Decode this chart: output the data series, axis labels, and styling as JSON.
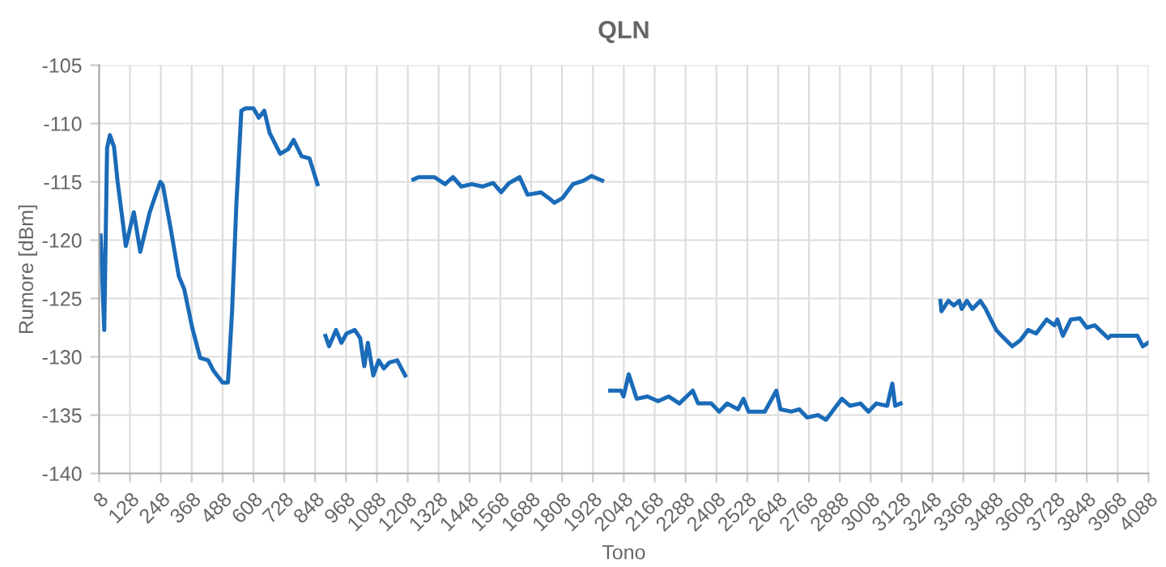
{
  "chart_data": {
    "type": "line",
    "title": "QLN",
    "xlabel": "Tono",
    "ylabel": "Rumore [dBm]",
    "series": [
      {
        "color": "#1a6bb8",
        "x": [
          14,
          28,
          39,
          50,
          66,
          80,
          112,
          143,
          168,
          205,
          225,
          246,
          256,
          287,
          318,
          339,
          370,
          401,
          432,
          453,
          488,
          509,
          525,
          542,
          561,
          577,
          608,
          629,
          650,
          671,
          712,
          743,
          764,
          795,
          826,
          857,
          872,
          888,
          902,
          929,
          950,
          970,
          1002,
          1023,
          1039,
          1053,
          1074,
          1095,
          1115,
          1136,
          1167,
          1198,
          1214,
          1230,
          1250,
          1312,
          1353,
          1384,
          1416,
          1457,
          1498,
          1540,
          1571,
          1602,
          1643,
          1674,
          1726,
          1757,
          1778,
          1809,
          1850,
          1891,
          1922,
          1964,
          1980,
          1995,
          2037,
          2047,
          2067,
          2098,
          2140,
          2181,
          2222,
          2264,
          2316,
          2337,
          2388,
          2419,
          2450,
          2492,
          2513,
          2533,
          2596,
          2641,
          2657,
          2699,
          2730,
          2761,
          2803,
          2834,
          2865,
          2896,
          2927,
          2968,
          2999,
          3030,
          3072,
          3092,
          3103,
          3124,
          3200,
          3279,
          3283,
          3310,
          3331,
          3352,
          3362,
          3382,
          3403,
          3434,
          3455,
          3475,
          3496,
          3517,
          3558,
          3589,
          3620,
          3651,
          3692,
          3723,
          3734,
          3755,
          3786,
          3821,
          3848,
          3879,
          3931,
          3941,
          4045,
          4066,
          4086
        ],
        "values": [
          -119.6,
          -127.7,
          -112.1,
          -111,
          -112,
          -115,
          -120.5,
          -117.6,
          -121,
          -117.6,
          -116.3,
          -115,
          -115.3,
          -119.1,
          -123.1,
          -124.2,
          -127.5,
          -130.1,
          -130.3,
          -131.2,
          -132.2,
          -132.2,
          -126.1,
          -116.8,
          -108.9,
          -108.7,
          -108.7,
          -109.5,
          -108.9,
          -110.8,
          -112.6,
          -112.2,
          -111.4,
          -112.8,
          -113,
          -115.2,
          null,
          -128.2,
          -129.1,
          -127.7,
          -128.8,
          -128,
          -127.7,
          -128.4,
          -130.8,
          -128.8,
          -131.6,
          -130.3,
          -131,
          -130.5,
          -130.3,
          -131.6,
          null,
          -114.8,
          -114.6,
          -114.6,
          -115.2,
          -114.6,
          -115.4,
          -115.2,
          -115.4,
          -115.1,
          -115.9,
          -115.1,
          -114.6,
          -116.1,
          -115.9,
          -116.4,
          -116.8,
          -116.4,
          -115.2,
          -114.9,
          -114.5,
          -114.9,
          null,
          -132.9,
          -132.9,
          -133.4,
          -131.5,
          -133.6,
          -133.4,
          -133.8,
          -133.4,
          -134,
          -132.9,
          -134,
          -134,
          -134.7,
          -134,
          -134.5,
          -133.6,
          -134.7,
          -134.7,
          -132.9,
          -134.5,
          -134.7,
          -134.5,
          -135.2,
          -135,
          -135.4,
          -134.5,
          -133.6,
          -134.2,
          -134,
          -134.7,
          -134,
          -134.2,
          -132.3,
          -134.2,
          -134,
          null,
          -125.2,
          -126.1,
          -125.2,
          -125.6,
          -125.2,
          -125.9,
          -125.2,
          -125.9,
          -125.2,
          -125.9,
          -126.8,
          -127.7,
          -128.2,
          -129.1,
          -128.6,
          -127.7,
          -128,
          -126.8,
          -127.3,
          -126.8,
          -128.2,
          -126.8,
          -126.7,
          -127.5,
          -127.3,
          -128.4,
          -128.2,
          -128.2,
          -129.1,
          -128.8
        ]
      }
    ],
    "xlim": [
      8,
      4088
    ],
    "xticks": [
      8,
      128,
      248,
      368,
      488,
      608,
      728,
      848,
      968,
      1088,
      1208,
      1328,
      1448,
      1568,
      1688,
      1808,
      1928,
      2048,
      2168,
      2288,
      2408,
      2528,
      2648,
      2768,
      2888,
      3008,
      3128,
      3248,
      3368,
      3488,
      3608,
      3728,
      3848,
      3968,
      4088
    ],
    "ylim": [
      -140,
      -105
    ],
    "yticks": [
      -140,
      -135,
      -130,
      -125,
      -120,
      -115,
      -110,
      -105
    ],
    "grid": true,
    "legend": false,
    "marker": "none",
    "line_style": "solid"
  }
}
